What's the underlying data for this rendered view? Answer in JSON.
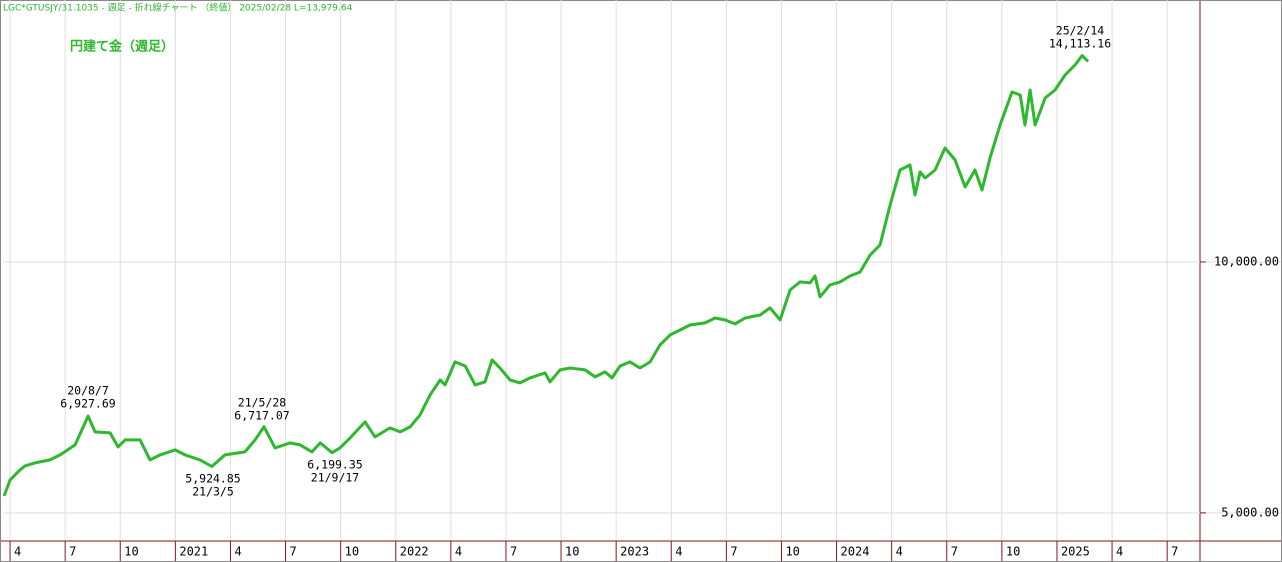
{
  "chart_data": {
    "type": "line",
    "title": "LGC*GTUSJY/31.1035 - 週足 - 折れ線チャート （終値） 2025/02/28 L=13,979.64",
    "x": [
      2020.223,
      2020.25,
      2020.295,
      2020.318,
      2020.363,
      2020.431,
      2020.477,
      2020.545,
      2020.604,
      2020.636,
      2020.704,
      2020.74,
      2020.772,
      2020.84,
      2020.885,
      2020.931,
      2020.999,
      2021.044,
      2021.112,
      2021.166,
      2021.225,
      2021.316,
      2021.362,
      2021.402,
      2021.452,
      2021.52,
      2021.566,
      2021.62,
      2021.657,
      2021.711,
      2021.747,
      2021.793,
      2021.861,
      2021.906,
      2021.974,
      2022.02,
      2022.065,
      2022.11,
      2022.156,
      2022.201,
      2022.224,
      2022.269,
      2022.315,
      2022.36,
      2022.405,
      2022.437,
      2022.473,
      2022.519,
      2022.564,
      2022.609,
      2022.677,
      2022.7,
      2022.745,
      2022.791,
      2022.859,
      2022.904,
      2022.95,
      2022.981,
      2023.018,
      2023.063,
      2023.108,
      2023.154,
      2023.199,
      2023.245,
      2023.29,
      2023.335,
      2023.403,
      2023.449,
      2023.494,
      2023.539,
      2023.585,
      2023.653,
      2023.698,
      2023.744,
      2023.789,
      2023.834,
      2023.88,
      2023.902,
      2023.925,
      2023.97,
      2024.016,
      2024.061,
      2024.107,
      2024.152,
      2024.197,
      2024.243,
      2024.288,
      2024.333,
      2024.356,
      2024.379,
      2024.402,
      2024.447,
      2024.492,
      2024.538,
      2024.583,
      2024.628,
      2024.66,
      2024.696,
      2024.742,
      2024.796,
      2024.833,
      2024.855,
      2024.878,
      2024.901,
      2024.946,
      2024.991,
      2025.037,
      2025.082,
      2025.114,
      2025.141
    ],
    "series": [
      {
        "name": "円建て金（週足）",
        "color": "#2eb82e",
        "values": [
          5339,
          5657,
          5857,
          5936,
          5996,
          6056,
          6155,
          6355,
          6928,
          6614,
          6594,
          6315,
          6454,
          6454,
          6056,
          6155,
          6255,
          6155,
          6056,
          5925,
          6155,
          6215,
          6454,
          6717,
          6295,
          6394,
          6355,
          6215,
          6394,
          6199,
          6295,
          6494,
          6813,
          6514,
          6693,
          6614,
          6713,
          6952,
          7351,
          7649,
          7550,
          8008,
          7928,
          7550,
          7610,
          8048,
          7888,
          7649,
          7590,
          7689,
          7789,
          7610,
          7849,
          7888,
          7849,
          7709,
          7809,
          7689,
          7928,
          8008,
          7888,
          8008,
          8347,
          8546,
          8645,
          8745,
          8785,
          8884,
          8845,
          8765,
          8884,
          8944,
          9084,
          8845,
          9442,
          9602,
          9582,
          9721,
          9303,
          9542,
          9602,
          9721,
          9801,
          10139,
          10339,
          11135,
          11833,
          11932,
          11335,
          11793,
          11673,
          11833,
          12271,
          12032,
          11494,
          11833,
          11434,
          12072,
          12729,
          13386,
          13327,
          12729,
          13426,
          12729,
          13267,
          13426,
          13725,
          13924,
          14113,
          13996
        ]
      }
    ],
    "xlim": [
      2020.218,
      2025.649
    ],
    "xticks": [
      {
        "value": 2020.25,
        "label": "4"
      },
      {
        "value": 2020.5,
        "label": "7"
      },
      {
        "value": 2020.75,
        "label": "10"
      },
      {
        "value": 2021,
        "label": "2021"
      },
      {
        "value": 2021.25,
        "label": "4"
      },
      {
        "value": 2021.5,
        "label": "7"
      },
      {
        "value": 2021.75,
        "label": "10"
      },
      {
        "value": 2022,
        "label": "2022"
      },
      {
        "value": 2022.25,
        "label": "4"
      },
      {
        "value": 2022.5,
        "label": "7"
      },
      {
        "value": 2022.75,
        "label": "10"
      },
      {
        "value": 2023,
        "label": "2023"
      },
      {
        "value": 2023.25,
        "label": "4"
      },
      {
        "value": 2023.5,
        "label": "7"
      },
      {
        "value": 2023.75,
        "label": "10"
      },
      {
        "value": 2024,
        "label": "2024"
      },
      {
        "value": 2024.25,
        "label": "4"
      },
      {
        "value": 2024.5,
        "label": "7"
      },
      {
        "value": 2024.75,
        "label": "10"
      },
      {
        "value": 2025,
        "label": "2025"
      },
      {
        "value": 2025.25,
        "label": "4"
      },
      {
        "value": 2025.5,
        "label": "7"
      }
    ],
    "ylim": [
      4460,
      15220
    ],
    "yticks": [
      {
        "value": 5000,
        "label": "5,000.00"
      },
      {
        "value": 10000,
        "label": "10,000.00"
      }
    ],
    "grid": true,
    "annotations": [
      {
        "lines": [
          "20/8/7",
          "6,927.69"
        ]
      },
      {
        "lines": [
          "5,924.85",
          "21/3/5"
        ]
      },
      {
        "lines": [
          "21/5/28",
          "6,717.07"
        ]
      },
      {
        "lines": [
          "6,199.35",
          "21/9/17"
        ]
      },
      {
        "lines": [
          "25/2/14",
          "14,113.16"
        ]
      }
    ]
  }
}
